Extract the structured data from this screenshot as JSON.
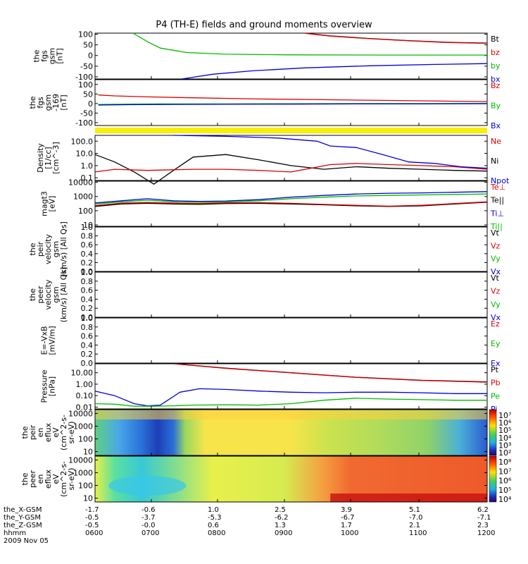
{
  "title": "P4 (TH-E) fields and ground moments overview",
  "chart_data": {
    "type": "line",
    "title": "P4 (TH-E) fields and ground moments overview",
    "x_ticks": [
      "0600",
      "0700",
      "0800",
      "0900",
      "1000",
      "1100",
      "1200"
    ],
    "panels": [
      {
        "id": "fgs",
        "ylabel": [
          "the",
          "fgs",
          "gsm",
          "[nT]"
        ],
        "scale": "linear",
        "ylim": [
          -110,
          105
        ],
        "y_ticks": [
          "100",
          "50",
          "0",
          "-50",
          "-100"
        ],
        "y_tick_values": [
          100,
          50,
          0,
          -50,
          -100
        ],
        "legend": [
          "Bt",
          "bz",
          "by",
          "bx"
        ],
        "legend_colors": [
          "#000000",
          "#dd0000",
          "#00bb00",
          "#0000dd"
        ],
        "series": [
          {
            "name": "Bt",
            "color": "#000000",
            "x": [
              3.22,
              3.6,
              4.2,
              4.8,
              5.4,
              6.0
            ],
            "y": [
              105,
              92,
              80,
              70,
              62,
              58
            ]
          },
          {
            "name": "bz",
            "color": "#dd0000",
            "x": [
              3.22,
              3.6,
              4.2,
              4.8,
              5.4,
              6.0
            ],
            "y": [
              104,
              91,
              79,
              69,
              61,
              57
            ]
          },
          {
            "name": "by",
            "color": "#00bb00",
            "x": [
              0.58,
              0.8,
              1.0,
              1.4,
              2.0,
              3.0,
              4.5,
              6.0
            ],
            "y": [
              105,
              65,
              35,
              14,
              6,
              3,
              2,
              2
            ]
          },
          {
            "name": "bx",
            "color": "#0000dd",
            "x": [
              1.33,
              1.8,
              2.4,
              3.2,
              4.2,
              5.2,
              6.0
            ],
            "y": [
              -110,
              -88,
              -72,
              -58,
              -48,
              -42,
              -38
            ]
          }
        ]
      },
      {
        "id": "fgm",
        "ylabel": [
          "the",
          "fgs",
          "gsm",
          "-169",
          "[nT]"
        ],
        "scale": "linear",
        "ylim": [
          -115,
          125
        ],
        "y_ticks": [
          "100",
          "50",
          "0",
          "-50",
          "-100"
        ],
        "y_tick_values": [
          100,
          50,
          0,
          -50,
          -100
        ],
        "legend": [
          "Bz",
          "By",
          "Bx"
        ],
        "legend_colors": [
          "#dd0000",
          "#00bb00",
          "#0000dd"
        ],
        "series": [
          {
            "name": "Bz",
            "color": "#dd0000",
            "x": [
              0.05,
              0.3,
              0.8,
              1.5,
              2.5,
              3.5,
              4.5,
              5.5,
              6.0
            ],
            "y": [
              45,
              40,
              35,
              30,
              24,
              20,
              16,
              12,
              10
            ]
          },
          {
            "name": "By",
            "color": "#00bb00",
            "x": [
              0.05,
              0.5,
              1.0,
              2.0,
              3.0,
              4.0,
              5.0,
              6.0
            ],
            "y": [
              -5,
              -3,
              -2,
              -2,
              -1,
              0,
              0,
              1
            ]
          },
          {
            "name": "Bx",
            "color": "#0000dd",
            "x": [
              0.05,
              0.5,
              1.0,
              2.0,
              3.0,
              4.0,
              5.0,
              6.0
            ],
            "y": [
              -8,
              -6,
              -5,
              -4,
              -3,
              -2,
              -2,
              -1
            ]
          }
        ]
      },
      {
        "id": "density",
        "ylabel": [
          "Density",
          "[1/cc]",
          "[cm^-3]"
        ],
        "scale": "log",
        "ylim": [
          0.06,
          300
        ],
        "y_ticks": [
          "100.0",
          "10.0",
          "1.0",
          "0.1"
        ],
        "y_tick_values": [
          100,
          10,
          1,
          0.1
        ],
        "legend": [
          "Ne",
          "Ni",
          "Npot"
        ],
        "legend_colors": [
          "#dd0000",
          "#000000",
          "#0000dd"
        ],
        "series": [
          {
            "name": "Ni",
            "color": "#000000",
            "x": [
              0.0,
              0.3,
              0.6,
              0.9,
              1.2,
              1.5,
              2.0,
              2.5,
              3.0,
              3.5,
              4.0,
              4.5,
              5.0,
              5.5,
              6.0
            ],
            "y": [
              8,
              2,
              0.3,
              0.03,
              0.4,
              5,
              8,
              3,
              1,
              0.5,
              0.8,
              0.6,
              0.5,
              0.4,
              0.35
            ]
          },
          {
            "name": "Ne",
            "color": "#dd0000",
            "x": [
              0.0,
              0.3,
              0.8,
              1.5,
              2.0,
              2.5,
              3.0,
              3.3,
              3.6,
              4.0,
              4.5,
              5.0,
              5.5,
              6.0
            ],
            "y": [
              0.3,
              0.5,
              0.4,
              0.5,
              0.5,
              0.4,
              0.3,
              0.6,
              1.2,
              1.5,
              1.2,
              1.0,
              0.8,
              0.5
            ]
          },
          {
            "name": "Npot",
            "color": "#0000dd",
            "x": [
              1.2,
              2.0,
              2.8,
              3.4,
              3.6,
              4.0,
              4.4,
              4.8,
              5.2,
              5.6,
              6.0
            ],
            "y": [
              300,
              250,
              180,
              100,
              40,
              30,
              8,
              2,
              1.5,
              0.8,
              0.6
            ]
          }
        ]
      },
      {
        "id": "energy",
        "ylabel": [
          "magt3",
          "[eV]"
        ],
        "scale": "log",
        "ylim": [
          8,
          12000
        ],
        "y_ticks": [
          "10000",
          "1000",
          "100",
          "10"
        ],
        "y_tick_values": [
          10000,
          1000,
          100,
          10
        ],
        "legend": [
          "Te⊥",
          "Te||",
          "Ti⊥",
          "Ti||"
        ],
        "legend_colors": [
          "#dd0000",
          "#000000",
          "#0000dd",
          "#00bb00"
        ],
        "series": [
          {
            "name": "Ti⊥",
            "color": "#0000dd",
            "x": [
              0.0,
              0.4,
              0.8,
              1.2,
              1.6,
              2.0,
              2.5,
              3.0,
              3.5,
              4.0,
              4.5,
              5.0,
              5.5,
              6.0
            ],
            "y": [
              350,
              500,
              700,
              500,
              450,
              480,
              600,
              900,
              1200,
              1500,
              1700,
              1800,
              2000,
              2200
            ]
          },
          {
            "name": "Ti||",
            "color": "#00bb00",
            "x": [
              0.0,
              0.4,
              0.8,
              1.2,
              1.6,
              2.0,
              2.5,
              3.0,
              3.5,
              4.0,
              4.5,
              5.0,
              5.5,
              6.0
            ],
            "y": [
              300,
              420,
              550,
              420,
              400,
              420,
              500,
              700,
              900,
              1100,
              1200,
              1300,
              1400,
              1500
            ]
          },
          {
            "name": "Te||",
            "color": "#000000",
            "x": [
              0.0,
              0.4,
              0.8,
              1.2,
              1.6,
              2.0,
              2.5,
              3.0,
              3.5,
              4.0,
              4.5,
              5.0,
              5.5,
              6.0
            ],
            "y": [
              200,
              300,
              330,
              300,
              280,
              320,
              330,
              300,
              260,
              220,
              200,
              220,
              300,
              400
            ]
          },
          {
            "name": "Te⊥",
            "color": "#dd0000",
            "x": [
              0.0,
              0.4,
              0.8,
              1.2,
              1.6,
              2.0,
              2.5,
              3.0,
              3.5,
              4.0,
              4.5,
              5.0,
              5.5,
              6.0
            ],
            "y": [
              230,
              340,
              380,
              340,
              320,
              360,
              370,
              330,
              280,
              240,
              210,
              240,
              320,
              420
            ]
          }
        ]
      },
      {
        "id": "peir_vel",
        "ylabel": [
          "the",
          "peir",
          "velocity",
          "gsm",
          "(km/s) [All Qs]"
        ],
        "scale": "linear",
        "ylim": [
          0,
          1
        ],
        "y_ticks": [
          "1.0",
          "0.8",
          "0.6",
          "0.4",
          "0.2",
          "0.0"
        ],
        "y_tick_values": [
          1,
          0.8,
          0.6,
          0.4,
          0.2,
          0
        ],
        "legend": [
          "Vt",
          "Vz",
          "Vy",
          "Vx"
        ],
        "legend_colors": [
          "#000000",
          "#dd0000",
          "#00bb00",
          "#0000dd"
        ],
        "series": []
      },
      {
        "id": "peer_vel",
        "ylabel": [
          "the",
          "peer",
          "velocity",
          "gsm",
          "(km/s) [All Qs]"
        ],
        "scale": "linear",
        "ylim": [
          0,
          1
        ],
        "y_ticks": [
          "1.0",
          "0.8",
          "0.6",
          "0.4",
          "0.2",
          "0.0"
        ],
        "y_tick_values": [
          1,
          0.8,
          0.6,
          0.4,
          0.2,
          0
        ],
        "legend": [
          "Vt",
          "Vz",
          "Vy",
          "Vx"
        ],
        "legend_colors": [
          "#000000",
          "#dd0000",
          "#00bb00",
          "#0000dd"
        ],
        "series": []
      },
      {
        "id": "efield",
        "ylabel": [
          "E=-VxB",
          "[mV/m]"
        ],
        "scale": "linear",
        "ylim": [
          0,
          1
        ],
        "y_ticks": [
          "1.0",
          "0.8",
          "0.6",
          "0.4",
          "0.2",
          "0.0"
        ],
        "y_tick_values": [
          1,
          0.8,
          0.6,
          0.4,
          0.2,
          0
        ],
        "legend": [
          "Ez",
          "Ey",
          "Ex"
        ],
        "legend_colors": [
          "#dd0000",
          "#00bb00",
          "#0000dd"
        ],
        "series": []
      },
      {
        "id": "pressure",
        "ylabel": [
          "Pressure",
          "[nPa]"
        ],
        "scale": "log",
        "ylim": [
          0.007,
          60
        ],
        "y_ticks": [
          "10.00",
          "1.00",
          "0.10",
          "0.01"
        ],
        "y_tick_values": [
          10,
          1,
          0.1,
          0.01
        ],
        "legend": [
          "Pt",
          "Pb",
          "Pe",
          "Pi"
        ],
        "legend_colors": [
          "#000000",
          "#dd0000",
          "#00bb00",
          "#0000dd"
        ],
        "series": [
          {
            "name": "Pt",
            "color": "#000000",
            "x": [
              1.22,
              2.0,
              3.0,
              4.0,
              5.0,
              6.0
            ],
            "y": [
              60,
              25,
              10,
              4,
              2.2,
              1.6
            ]
          },
          {
            "name": "Pb",
            "color": "#dd0000",
            "x": [
              1.22,
              2.0,
              3.0,
              4.0,
              5.0,
              6.0
            ],
            "y": [
              59,
              24,
              9.8,
              3.9,
              2.1,
              1.5
            ]
          },
          {
            "name": "Pi",
            "color": "#0000dd",
            "x": [
              0.0,
              0.3,
              0.6,
              0.8,
              1.0,
              1.3,
              1.6,
              2.0,
              2.5,
              3.0,
              3.5,
              4.0,
              4.5,
              5.0,
              5.5,
              6.0
            ],
            "y": [
              0.25,
              0.1,
              0.02,
              0.013,
              0.015,
              0.2,
              0.4,
              0.35,
              0.25,
              0.2,
              0.18,
              0.2,
              0.2,
              0.18,
              0.15,
              0.15
            ]
          },
          {
            "name": "Pe",
            "color": "#00bb00",
            "x": [
              0.0,
              0.3,
              0.6,
              0.9,
              1.2,
              1.5,
              2.0,
              2.5,
              3.0,
              3.5,
              4.0,
              4.5,
              5.0,
              5.5,
              6.0
            ],
            "y": [
              0.02,
              0.018,
              0.012,
              0.012,
              0.013,
              0.015,
              0.016,
              0.015,
              0.02,
              0.04,
              0.06,
              0.05,
              0.045,
              0.04,
              0.04
            ]
          }
        ]
      },
      {
        "id": "peir_en",
        "ylabel": [
          "the",
          "peir",
          "en",
          "eflux",
          "eV",
          "(cm^2-s-",
          "sr-eV)"
        ],
        "type": "spectrogram",
        "scale": "log",
        "ylim": [
          5,
          20000
        ],
        "y_ticks": [
          "10000",
          "1000",
          "100",
          "10"
        ],
        "y_tick_values": [
          10000,
          1000,
          100,
          10
        ],
        "colorbar": {
          "ticks": [
            "10⁷",
            "10⁶",
            "10⁵",
            "10⁴",
            "10³",
            "10²"
          ]
        }
      },
      {
        "id": "peer_en",
        "ylabel": [
          "the",
          "peer",
          "en",
          "eflux",
          "eV",
          "(cm^2-s-",
          "sr-eV)"
        ],
        "type": "spectrogram",
        "scale": "log",
        "ylim": [
          5,
          20000
        ],
        "y_ticks": [
          "10000",
          "1000",
          "100",
          "10"
        ],
        "y_tick_values": [
          10000,
          1000,
          100,
          10
        ],
        "colorbar": {
          "ticks": [
            "10⁸",
            "10⁷",
            "10⁶",
            "10⁵",
            "10⁴"
          ]
        }
      }
    ],
    "ephemeris": {
      "labels": [
        "the_X-GSM",
        "the_Y-GSM",
        "the_Z-GSM",
        "hhmm",
        "2009 Nov 05"
      ],
      "rows": [
        [
          "-1.7",
          "-0.6",
          "1.0",
          "2.5",
          "3.9",
          "5.1",
          "6.2"
        ],
        [
          "-0.5",
          "-3.7",
          "-5.3",
          "-6.2",
          "-6.7",
          "-7.0",
          "-7.1"
        ],
        [
          "-0.5",
          "-0.0",
          "0.6",
          "1.3",
          "1.7",
          "2.1",
          "2.3"
        ],
        [
          "0600",
          "0700",
          "0800",
          "0900",
          "1000",
          "1100",
          "1200"
        ]
      ]
    }
  }
}
